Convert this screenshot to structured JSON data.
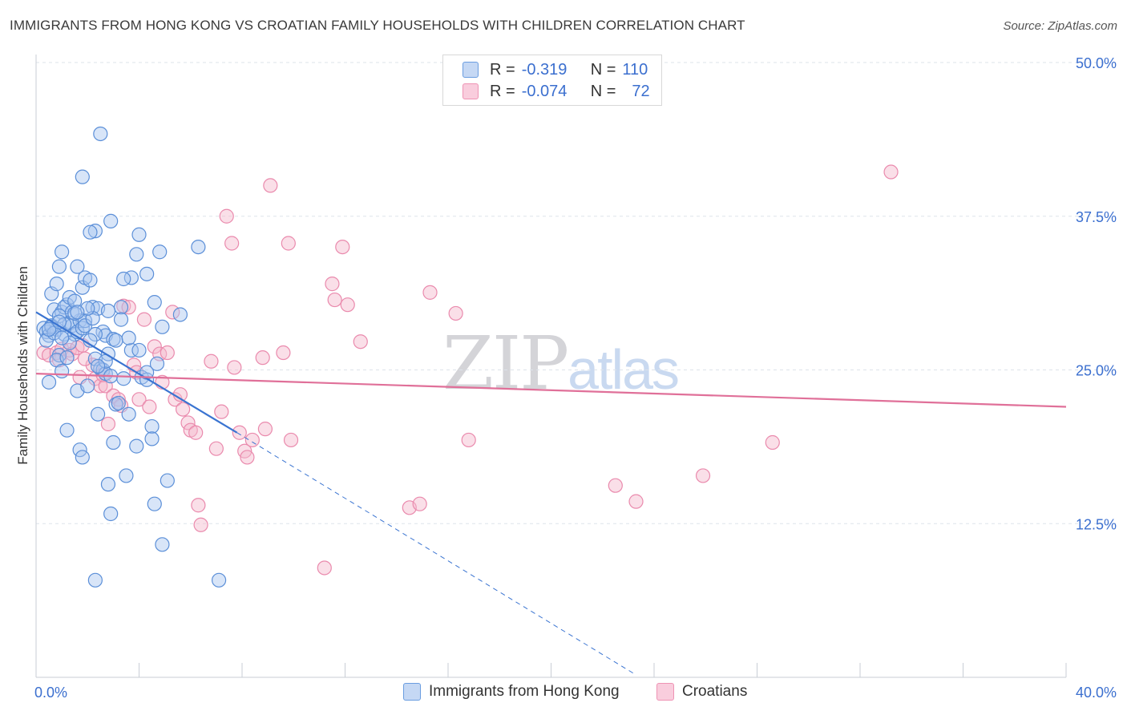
{
  "header": {
    "title": "IMMIGRANTS FROM HONG KONG VS CROATIAN FAMILY HOUSEHOLDS WITH CHILDREN CORRELATION CHART",
    "source": "Source: ZipAtlas.com"
  },
  "watermark": {
    "zip": "ZIP",
    "atlas": "atlas"
  },
  "legend_top": [
    {
      "r_label": "R =",
      "r_value": "-0.319",
      "n_label": "N =",
      "n_value": "110"
    },
    {
      "r_label": "R =",
      "r_value": "-0.074",
      "n_label": "N =",
      "n_value": "72"
    }
  ],
  "legend_bottom": [
    "Immigrants from Hong Kong",
    "Croatians"
  ],
  "colors": {
    "blue_fill": "#a9c6ef",
    "blue_stroke": "#5b8fd8",
    "blue_line": "#3a74d1",
    "pink_fill": "#f5b9cd",
    "pink_stroke": "#ea8aad",
    "pink_line": "#e07099",
    "grid": "#dde3ea",
    "tick_label": "#3b6fcf"
  },
  "chart_data": {
    "type": "scatter",
    "title": "IMMIGRANTS FROM HONG KONG VS CROATIAN FAMILY HOUSEHOLDS WITH CHILDREN CORRELATION CHART",
    "xlabel": "",
    "ylabel": "Family Households with Children",
    "xlim": [
      0,
      40
    ],
    "ylim": [
      0,
      50
    ],
    "x_tick_labels": [
      "0.0%",
      "40.0%"
    ],
    "y_ticks": [
      12.5,
      25.0,
      37.5,
      50.0
    ],
    "y_tick_labels": [
      "12.5%",
      "25.0%",
      "37.5%",
      "50.0%"
    ],
    "series": [
      {
        "name": "Immigrants from Hong Kong",
        "color": "blue",
        "trend": {
          "x": [
            0,
            7.8
          ],
          "y": [
            29.7,
            19.9
          ],
          "dashed_x": [
            7.8,
            23.3
          ],
          "dashed_y": [
            19.9,
            0.2
          ]
        },
        "points": [
          [
            0.3,
            28.4
          ],
          [
            0.4,
            28.1
          ],
          [
            0.5,
            27.8
          ],
          [
            0.6,
            28.6
          ],
          [
            0.7,
            29.9
          ],
          [
            0.8,
            28.3
          ],
          [
            0.9,
            26.2
          ],
          [
            1.0,
            29.7
          ],
          [
            1.1,
            27.9
          ],
          [
            1.2,
            30.3
          ],
          [
            1.3,
            28.8
          ],
          [
            1.4,
            28.6
          ],
          [
            1.5,
            27.9
          ],
          [
            1.6,
            28.1
          ],
          [
            1.7,
            29.0
          ],
          [
            1.8,
            28.4
          ],
          [
            0.6,
            31.2
          ],
          [
            0.8,
            32.0
          ],
          [
            0.9,
            33.4
          ],
          [
            1.0,
            34.6
          ],
          [
            1.1,
            30.1
          ],
          [
            1.3,
            30.9
          ],
          [
            1.4,
            29.7
          ],
          [
            1.5,
            30.6
          ],
          [
            1.6,
            33.4
          ],
          [
            1.8,
            31.7
          ],
          [
            1.9,
            32.5
          ],
          [
            2.1,
            32.3
          ],
          [
            2.2,
            30.1
          ],
          [
            2.4,
            30.0
          ],
          [
            2.6,
            28.1
          ],
          [
            2.8,
            26.3
          ],
          [
            2.7,
            27.8
          ],
          [
            3.0,
            27.5
          ],
          [
            3.1,
            27.4
          ],
          [
            3.3,
            30.1
          ],
          [
            0.4,
            27.4
          ],
          [
            0.5,
            24.0
          ],
          [
            0.8,
            25.8
          ],
          [
            1.0,
            24.9
          ],
          [
            1.2,
            20.1
          ],
          [
            1.6,
            23.3
          ],
          [
            1.7,
            18.5
          ],
          [
            1.8,
            17.9
          ],
          [
            2.0,
            23.7
          ],
          [
            2.3,
            25.9
          ],
          [
            2.4,
            21.4
          ],
          [
            2.5,
            25.1
          ],
          [
            2.6,
            25.0
          ],
          [
            2.7,
            24.7
          ],
          [
            2.9,
            24.5
          ],
          [
            3.0,
            19.1
          ],
          [
            3.1,
            22.2
          ],
          [
            3.2,
            22.3
          ],
          [
            3.4,
            24.3
          ],
          [
            3.6,
            21.4
          ],
          [
            3.7,
            26.6
          ],
          [
            3.9,
            18.8
          ],
          [
            4.1,
            24.4
          ],
          [
            4.3,
            24.2
          ],
          [
            4.5,
            20.4
          ],
          [
            4.5,
            19.4
          ],
          [
            4.6,
            14.1
          ],
          [
            4.9,
            10.8
          ],
          [
            5.1,
            16.0
          ],
          [
            4.6,
            30.5
          ],
          [
            4.9,
            28.5
          ],
          [
            5.6,
            29.5
          ],
          [
            6.3,
            35.0
          ],
          [
            7.1,
            7.9
          ],
          [
            3.5,
            16.4
          ],
          [
            2.8,
            15.7
          ],
          [
            2.9,
            13.3
          ],
          [
            2.3,
            7.9
          ],
          [
            4.3,
            32.8
          ],
          [
            4.0,
            36.0
          ],
          [
            3.7,
            32.5
          ],
          [
            2.9,
            37.1
          ],
          [
            2.3,
            36.3
          ],
          [
            2.1,
            36.2
          ],
          [
            2.5,
            44.2
          ],
          [
            1.8,
            40.7
          ],
          [
            3.9,
            34.4
          ],
          [
            4.8,
            34.6
          ],
          [
            3.4,
            32.4
          ],
          [
            2.3,
            27.9
          ],
          [
            1.5,
            29.6
          ],
          [
            1.9,
            29.0
          ],
          [
            0.6,
            28.5
          ],
          [
            0.7,
            28.0
          ],
          [
            0.5,
            28.3
          ],
          [
            0.9,
            29.4
          ],
          [
            1.1,
            28.7
          ],
          [
            1.3,
            27.2
          ],
          [
            2.7,
            25.7
          ],
          [
            2.4,
            25.3
          ],
          [
            3.6,
            27.6
          ],
          [
            4.0,
            26.6
          ],
          [
            4.3,
            24.8
          ],
          [
            4.7,
            25.5
          ],
          [
            1.9,
            28.6
          ],
          [
            2.2,
            29.2
          ],
          [
            2.0,
            30.0
          ],
          [
            2.8,
            29.8
          ],
          [
            3.3,
            29.1
          ],
          [
            1.6,
            29.7
          ],
          [
            2.1,
            27.4
          ],
          [
            1.2,
            26.0
          ],
          [
            0.9,
            28.9
          ],
          [
            1.0,
            27.6
          ]
        ]
      },
      {
        "name": "Croatians",
        "color": "pink",
        "trend": {
          "x": [
            0,
            40
          ],
          "y": [
            24.7,
            22.0
          ]
        },
        "points": [
          [
            0.3,
            26.4
          ],
          [
            0.5,
            26.2
          ],
          [
            0.8,
            26.4
          ],
          [
            0.9,
            25.8
          ],
          [
            1.0,
            26.7
          ],
          [
            1.3,
            26.6
          ],
          [
            1.4,
            26.3
          ],
          [
            1.6,
            26.8
          ],
          [
            1.7,
            24.4
          ],
          [
            1.8,
            27.0
          ],
          [
            2.2,
            25.4
          ],
          [
            2.3,
            24.3
          ],
          [
            2.5,
            23.7
          ],
          [
            2.7,
            23.7
          ],
          [
            2.8,
            20.6
          ],
          [
            3.0,
            22.9
          ],
          [
            3.2,
            22.6
          ],
          [
            3.3,
            22.1
          ],
          [
            3.4,
            30.2
          ],
          [
            3.6,
            30.1
          ],
          [
            3.8,
            25.4
          ],
          [
            4.0,
            22.6
          ],
          [
            4.2,
            29.1
          ],
          [
            4.4,
            22.0
          ],
          [
            4.6,
            26.9
          ],
          [
            4.8,
            26.3
          ],
          [
            4.9,
            24.0
          ],
          [
            5.1,
            26.4
          ],
          [
            5.3,
            29.7
          ],
          [
            5.4,
            22.6
          ],
          [
            5.6,
            23.0
          ],
          [
            5.7,
            21.8
          ],
          [
            5.9,
            20.7
          ],
          [
            6.0,
            20.1
          ],
          [
            6.2,
            19.9
          ],
          [
            6.3,
            14.0
          ],
          [
            6.4,
            12.4
          ],
          [
            6.8,
            25.7
          ],
          [
            7.0,
            18.6
          ],
          [
            7.2,
            21.6
          ],
          [
            7.4,
            37.5
          ],
          [
            7.6,
            35.3
          ],
          [
            7.7,
            25.2
          ],
          [
            7.9,
            19.9
          ],
          [
            8.1,
            18.4
          ],
          [
            8.2,
            17.9
          ],
          [
            8.4,
            19.3
          ],
          [
            8.8,
            26.0
          ],
          [
            8.9,
            20.2
          ],
          [
            9.1,
            40.0
          ],
          [
            9.6,
            26.4
          ],
          [
            9.8,
            35.3
          ],
          [
            9.9,
            19.3
          ],
          [
            11.2,
            8.9
          ],
          [
            11.5,
            32.0
          ],
          [
            11.6,
            30.7
          ],
          [
            11.9,
            35.0
          ],
          [
            12.1,
            30.3
          ],
          [
            12.6,
            27.3
          ],
          [
            14.5,
            13.8
          ],
          [
            14.9,
            14.1
          ],
          [
            15.3,
            31.3
          ],
          [
            16.3,
            29.6
          ],
          [
            16.8,
            19.3
          ],
          [
            22.5,
            15.6
          ],
          [
            23.3,
            14.3
          ],
          [
            25.9,
            16.4
          ],
          [
            28.6,
            19.1
          ],
          [
            33.2,
            41.1
          ],
          [
            2.6,
            24.6
          ],
          [
            1.9,
            25.9
          ],
          [
            3.9,
            24.8
          ]
        ]
      }
    ]
  }
}
